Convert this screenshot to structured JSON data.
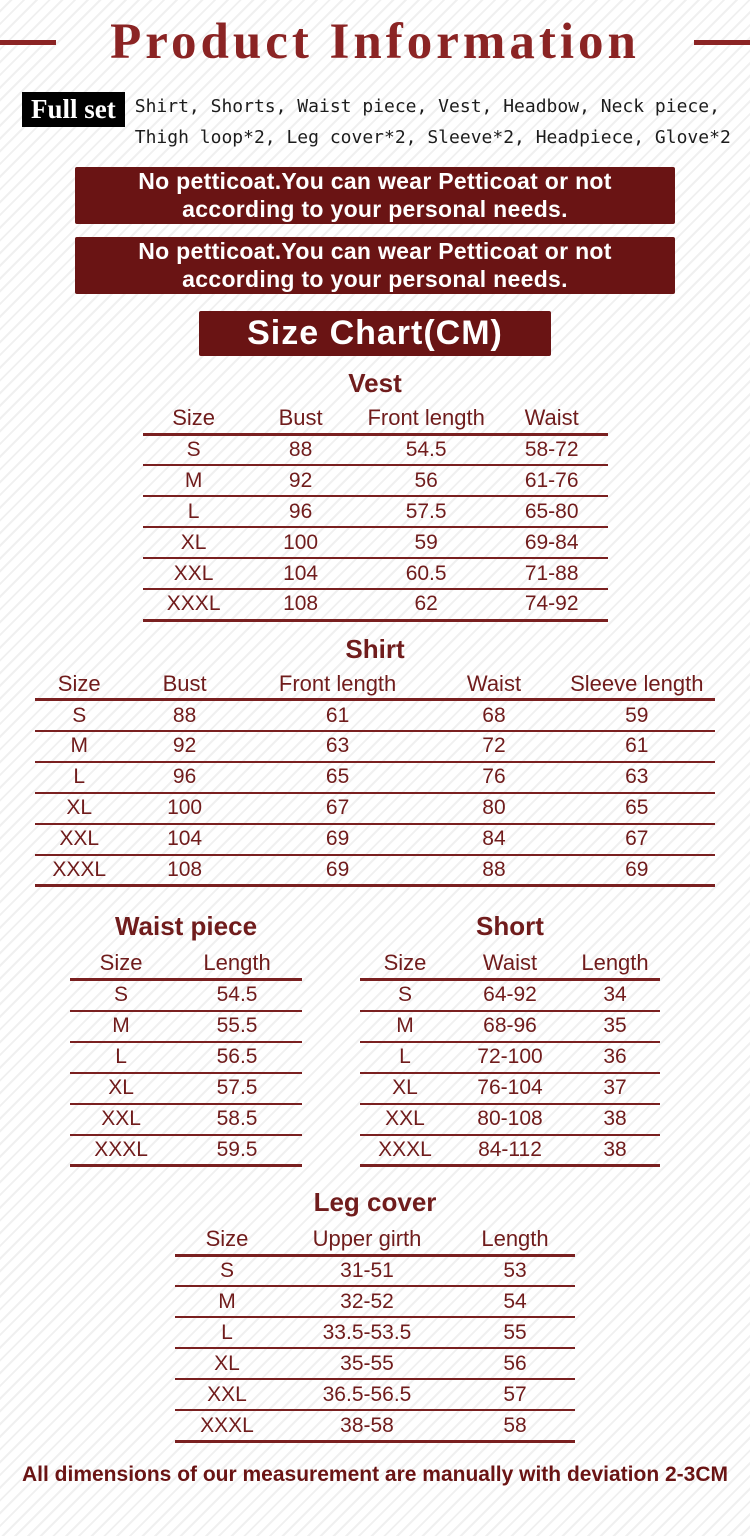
{
  "page": {
    "title": "Product Information",
    "footer": "All dimensions of our measurement are manually with deviation 2-3CM"
  },
  "full_set": {
    "label": "Full set",
    "description": "Shirt, Shorts, Waist piece, Vest, Headbow, Neck piece, Thigh loop*2, Leg cover*2, Sleeve*2, Headpiece, Glove*2"
  },
  "notices": [
    {
      "text": "No petticoat.You can wear Petticoat or not according to your personal needs."
    },
    {
      "text": "No petticoat.You can wear Petticoat or not according to your personal needs."
    }
  ],
  "size_chart": {
    "heading": "Size Chart(CM)",
    "unit": "CM",
    "tables": {
      "vest": {
        "title": "Vest",
        "headers": [
          "Size",
          "Bust",
          "Front length",
          "Waist"
        ],
        "rows": [
          [
            "S",
            "88",
            "54.5",
            "58-72"
          ],
          [
            "M",
            "92",
            "56",
            "61-76"
          ],
          [
            "L",
            "96",
            "57.5",
            "65-80"
          ],
          [
            "XL",
            "100",
            "59",
            "69-84"
          ],
          [
            "XXL",
            "104",
            "60.5",
            "71-88"
          ],
          [
            "XXXL",
            "108",
            "62",
            "74-92"
          ]
        ]
      },
      "shirt": {
        "title": "Shirt",
        "headers": [
          "Size",
          "Bust",
          "Front length",
          "Waist",
          "Sleeve length"
        ],
        "rows": [
          [
            "S",
            "88",
            "61",
            "68",
            "59"
          ],
          [
            "M",
            "92",
            "63",
            "72",
            "61"
          ],
          [
            "L",
            "96",
            "65",
            "76",
            "63"
          ],
          [
            "XL",
            "100",
            "67",
            "80",
            "65"
          ],
          [
            "XXL",
            "104",
            "69",
            "84",
            "67"
          ],
          [
            "XXXL",
            "108",
            "69",
            "88",
            "69"
          ]
        ]
      },
      "waist_piece": {
        "title": "Waist piece",
        "headers": [
          "Size",
          "Length"
        ],
        "rows": [
          [
            "S",
            "54.5"
          ],
          [
            "M",
            "55.5"
          ],
          [
            "L",
            "56.5"
          ],
          [
            "XL",
            "57.5"
          ],
          [
            "XXL",
            "58.5"
          ],
          [
            "XXXL",
            "59.5"
          ]
        ]
      },
      "short": {
        "title": "Short",
        "headers": [
          "Size",
          "Waist",
          "Length"
        ],
        "rows": [
          [
            "S",
            "64-92",
            "34"
          ],
          [
            "M",
            "68-96",
            "35"
          ],
          [
            "L",
            "72-100",
            "36"
          ],
          [
            "XL",
            "76-104",
            "37"
          ],
          [
            "XXL",
            "80-108",
            "38"
          ],
          [
            "XXXL",
            "84-112",
            "38"
          ]
        ]
      },
      "leg_cover": {
        "title": "Leg cover",
        "headers": [
          "Size",
          "Upper girth",
          "Length"
        ],
        "rows": [
          [
            "S",
            "31-51",
            "53"
          ],
          [
            "M",
            "32-52",
            "54"
          ],
          [
            "L",
            "33.5-53.5",
            "55"
          ],
          [
            "XL",
            "35-55",
            "56"
          ],
          [
            "XXL",
            "36.5-56.5",
            "57"
          ],
          [
            "XXXL",
            "38-58",
            "58"
          ]
        ]
      }
    }
  },
  "colors": {
    "banner_maroon": "#6a1414",
    "table_maroon": "#701c1c",
    "title_red": "#8b2424",
    "label_black": "#000000"
  }
}
